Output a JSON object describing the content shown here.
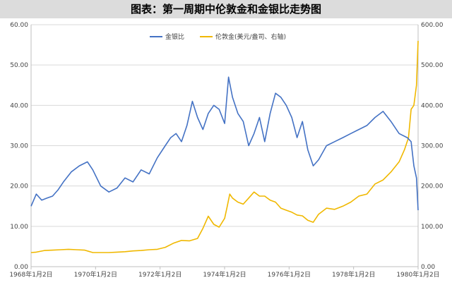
{
  "chart_data": {
    "type": "line",
    "title": "图表：第一周期中伦敦金和金银比走势图",
    "legend_position": "top-center",
    "grid": "horizontal",
    "x_ticks": [
      "1968年1月2日",
      "1970年1月2日",
      "1972年1月2日",
      "1974年1月2日",
      "1976年1月2日",
      "1978年1月2日",
      "1980年1月2日"
    ],
    "y_left": {
      "min": 0,
      "max": 60,
      "ticks": [
        "0.00",
        "10.00",
        "20.00",
        "30.00",
        "40.00",
        "50.00",
        "60.00"
      ]
    },
    "y_right": {
      "min": 0,
      "max": 600,
      "ticks": [
        "0.00",
        "100.00",
        "200.00",
        "300.00",
        "400.00",
        "500.00",
        "600.00"
      ]
    },
    "series": [
      {
        "name": "金银比",
        "axis": "left",
        "color": "#4472c4",
        "x": [
          "1968-01-02",
          "1968-03-01",
          "1968-05-01",
          "1968-07-01",
          "1968-09-01",
          "1968-11-01",
          "1969-01-02",
          "1969-04-01",
          "1969-07-01",
          "1969-10-01",
          "1969-12-01",
          "1970-03-01",
          "1970-06-01",
          "1970-09-01",
          "1970-12-01",
          "1971-03-01",
          "1971-06-01",
          "1971-09-01",
          "1971-12-01",
          "1972-03-01",
          "1972-05-01",
          "1972-07-01",
          "1972-09-01",
          "1972-11-01",
          "1973-01-02",
          "1973-03-01",
          "1973-05-01",
          "1973-07-01",
          "1973-09-01",
          "1973-11-01",
          "1974-01-02",
          "1974-02-15",
          "1974-04-01",
          "1974-06-01",
          "1974-08-01",
          "1974-10-01",
          "1974-12-01",
          "1975-02-01",
          "1975-04-01",
          "1975-06-01",
          "1975-08-01",
          "1975-10-01",
          "1975-12-01",
          "1976-02-01",
          "1976-04-01",
          "1976-06-01",
          "1976-08-01",
          "1976-10-01",
          "1976-12-01",
          "1977-03-01",
          "1977-06-01",
          "1977-09-01",
          "1977-12-01",
          "1978-03-01",
          "1978-06-01",
          "1978-09-01",
          "1978-12-01",
          "1979-03-01",
          "1979-06-01",
          "1979-09-01",
          "1979-10-15",
          "1979-11-15",
          "1979-12-15",
          "1980-01-02"
        ],
        "values": [
          15.0,
          18.0,
          16.5,
          17.0,
          17.5,
          19.0,
          21.0,
          23.5,
          25.0,
          26.0,
          24.0,
          20.0,
          18.5,
          19.5,
          22.0,
          21.0,
          24.0,
          23.0,
          27.0,
          30.0,
          32.0,
          33.0,
          31.0,
          35.0,
          41.0,
          37.0,
          34.0,
          38.0,
          40.0,
          39.0,
          35.5,
          47.0,
          42.0,
          38.0,
          36.0,
          30.0,
          33.0,
          37.0,
          31.0,
          38.0,
          43.0,
          42.0,
          40.0,
          37.0,
          32.0,
          36.0,
          29.0,
          25.0,
          26.5,
          30.0,
          31.0,
          32.0,
          33.0,
          34.0,
          35.0,
          37.0,
          38.5,
          36.0,
          33.0,
          32.0,
          31.0,
          25.0,
          22.0,
          14.0
        ]
      },
      {
        "name": "伦敦金(美元/盎司、右轴)",
        "axis": "right",
        "color": "#f0b800",
        "x": [
          "1968-01-02",
          "1968-03-01",
          "1968-06-01",
          "1968-09-01",
          "1968-12-01",
          "1969-03-01",
          "1969-06-01",
          "1969-09-01",
          "1969-12-01",
          "1970-03-01",
          "1970-06-01",
          "1970-09-01",
          "1970-12-01",
          "1971-03-01",
          "1971-06-01",
          "1971-09-01",
          "1971-12-01",
          "1972-03-01",
          "1972-06-01",
          "1972-09-01",
          "1972-12-01",
          "1973-03-01",
          "1973-05-01",
          "1973-07-01",
          "1973-09-01",
          "1973-11-01",
          "1974-01-02",
          "1974-02-01",
          "1974-03-01",
          "1974-04-01",
          "1974-06-01",
          "1974-08-01",
          "1974-10-01",
          "1974-12-01",
          "1975-02-01",
          "1975-04-01",
          "1975-06-01",
          "1975-08-01",
          "1975-10-01",
          "1975-12-01",
          "1976-02-01",
          "1976-04-01",
          "1976-06-01",
          "1976-08-01",
          "1976-10-01",
          "1976-12-01",
          "1977-03-01",
          "1977-06-01",
          "1977-09-01",
          "1977-12-01",
          "1978-03-01",
          "1978-06-01",
          "1978-09-01",
          "1978-12-01",
          "1979-03-01",
          "1979-06-01",
          "1979-08-01",
          "1979-09-15",
          "1979-10-15",
          "1979-11-15",
          "1979-12-15",
          "1980-01-02"
        ],
        "values": [
          35,
          36,
          40,
          41,
          42,
          43,
          42,
          41,
          35,
          35,
          35,
          36,
          37,
          39,
          40,
          42,
          43,
          48,
          58,
          65,
          64,
          70,
          95,
          125,
          105,
          98,
          120,
          150,
          180,
          170,
          160,
          155,
          170,
          185,
          175,
          175,
          165,
          160,
          145,
          140,
          135,
          128,
          126,
          115,
          110,
          130,
          145,
          142,
          150,
          160,
          175,
          180,
          205,
          215,
          235,
          260,
          290,
          320,
          390,
          400,
          450,
          560
        ]
      }
    ]
  }
}
